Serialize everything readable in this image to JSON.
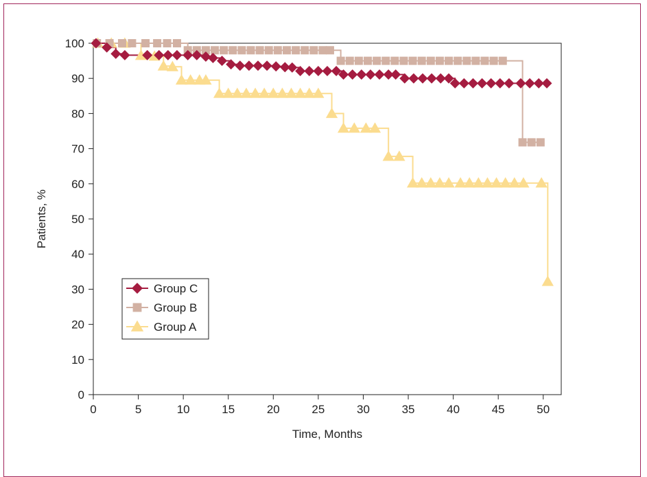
{
  "chart_data": {
    "type": "line",
    "title": "",
    "xlabel": "Time, Months",
    "ylabel": "Patients, %",
    "xlim": [
      0,
      52
    ],
    "ylim": [
      0,
      100
    ],
    "xticks": [
      0,
      5,
      10,
      15,
      20,
      25,
      30,
      35,
      40,
      45,
      50
    ],
    "yticks": [
      0,
      10,
      20,
      30,
      40,
      50,
      60,
      70,
      80,
      90,
      100
    ],
    "grid": false,
    "legend_position": "lower-left",
    "series": [
      {
        "name": "Group C",
        "color": "#a51c40",
        "marker": "diamond",
        "points": [
          [
            0.3,
            100
          ],
          [
            1.5,
            98.8
          ],
          [
            2.5,
            97
          ],
          [
            3.5,
            96.6
          ],
          [
            6,
            96.6
          ],
          [
            7.3,
            96.6
          ],
          [
            8.3,
            96.6
          ],
          [
            9.3,
            96.6
          ],
          [
            10.5,
            96.6
          ],
          [
            11.5,
            96.6
          ],
          [
            12.5,
            96.2
          ],
          [
            13.3,
            95.8
          ],
          [
            14.3,
            95
          ],
          [
            15.3,
            94
          ],
          [
            16.3,
            93.6
          ],
          [
            17.3,
            93.6
          ],
          [
            18.3,
            93.6
          ],
          [
            19.3,
            93.6
          ],
          [
            20.3,
            93.4
          ],
          [
            21.3,
            93.2
          ],
          [
            22.1,
            93.1
          ],
          [
            23,
            92.1
          ],
          [
            24,
            92.1
          ],
          [
            25,
            92.1
          ],
          [
            26,
            92.1
          ],
          [
            27,
            92.1
          ],
          [
            27.8,
            91.1
          ],
          [
            28.8,
            91.1
          ],
          [
            29.8,
            91.1
          ],
          [
            30.8,
            91.1
          ],
          [
            31.8,
            91.1
          ],
          [
            32.8,
            91.1
          ],
          [
            33.6,
            91.1
          ],
          [
            34.6,
            90
          ],
          [
            35.6,
            90
          ],
          [
            36.6,
            90
          ],
          [
            37.6,
            90
          ],
          [
            38.6,
            90
          ],
          [
            39.5,
            90
          ],
          [
            40.2,
            88.6
          ],
          [
            41.2,
            88.6
          ],
          [
            42.2,
            88.6
          ],
          [
            43.2,
            88.6
          ],
          [
            44.2,
            88.6
          ],
          [
            45.2,
            88.6
          ],
          [
            46.2,
            88.6
          ],
          [
            47.5,
            88.6
          ],
          [
            48.5,
            88.6
          ],
          [
            49.5,
            88.6
          ],
          [
            50.4,
            88.6
          ]
        ]
      },
      {
        "name": "Group B",
        "color": "#d2b1a3",
        "marker": "square",
        "points": [
          [
            0.4,
            100
          ],
          [
            1.8,
            100
          ],
          [
            3.2,
            100
          ],
          [
            4.3,
            100
          ],
          [
            5.8,
            100
          ],
          [
            7.1,
            100
          ],
          [
            8.2,
            100
          ],
          [
            9.3,
            100
          ],
          [
            10.5,
            98
          ],
          [
            11.5,
            98
          ],
          [
            12.5,
            98
          ],
          [
            13.5,
            98
          ],
          [
            14.5,
            98
          ],
          [
            15.5,
            98
          ],
          [
            16.5,
            98
          ],
          [
            17.5,
            98
          ],
          [
            18.5,
            98
          ],
          [
            19.5,
            98
          ],
          [
            20.5,
            98
          ],
          [
            21.5,
            98
          ],
          [
            22.5,
            98
          ],
          [
            23.5,
            98
          ],
          [
            24.5,
            98
          ],
          [
            25.5,
            98
          ],
          [
            26.3,
            98
          ],
          [
            27.5,
            95
          ],
          [
            28.5,
            95
          ],
          [
            29.5,
            95
          ],
          [
            30.5,
            95
          ],
          [
            31.5,
            95
          ],
          [
            32.5,
            95
          ],
          [
            33.5,
            95
          ],
          [
            34.5,
            95
          ],
          [
            35.5,
            95
          ],
          [
            36.5,
            95
          ],
          [
            37.5,
            95
          ],
          [
            38.5,
            95
          ],
          [
            39.5,
            95
          ],
          [
            40.5,
            95
          ],
          [
            41.5,
            95
          ],
          [
            42.5,
            95
          ],
          [
            43.5,
            95
          ],
          [
            44.5,
            95
          ],
          [
            45.5,
            95
          ],
          [
            47.7,
            71.8
          ],
          [
            48.7,
            71.8
          ],
          [
            49.7,
            71.8
          ]
        ]
      },
      {
        "name": "Group A",
        "color": "#fbdc8f",
        "marker": "triangle",
        "points": [
          [
            0.5,
            100
          ],
          [
            2,
            100
          ],
          [
            3.5,
            100
          ],
          [
            5.3,
            96.5
          ],
          [
            6.8,
            96.3
          ],
          [
            7.8,
            93.5
          ],
          [
            8.8,
            93.3
          ],
          [
            9.8,
            89.5
          ],
          [
            10.8,
            89.5
          ],
          [
            11.8,
            89.5
          ],
          [
            12.5,
            89.5
          ],
          [
            14,
            85.7
          ],
          [
            15,
            85.7
          ],
          [
            16,
            85.7
          ],
          [
            17,
            85.7
          ],
          [
            18,
            85.7
          ],
          [
            19,
            85.7
          ],
          [
            20,
            85.7
          ],
          [
            21,
            85.7
          ],
          [
            22,
            85.7
          ],
          [
            23,
            85.7
          ],
          [
            24,
            85.7
          ],
          [
            25,
            85.7
          ],
          [
            26.5,
            80
          ],
          [
            27.8,
            75.8
          ],
          [
            29,
            75.8
          ],
          [
            30.3,
            75.8
          ],
          [
            31.3,
            75.8
          ],
          [
            32.8,
            67.8
          ],
          [
            34,
            67.8
          ],
          [
            35.5,
            60.2
          ],
          [
            36.5,
            60.2
          ],
          [
            37.5,
            60.2
          ],
          [
            38.5,
            60.2
          ],
          [
            39.5,
            60.2
          ],
          [
            40.8,
            60.2
          ],
          [
            41.8,
            60.2
          ],
          [
            42.8,
            60.2
          ],
          [
            43.8,
            60.2
          ],
          [
            44.8,
            60.2
          ],
          [
            45.8,
            60.2
          ],
          [
            46.8,
            60.2
          ],
          [
            47.8,
            60.2
          ],
          [
            49.8,
            60.2
          ],
          [
            50.5,
            32.2
          ]
        ]
      }
    ]
  }
}
